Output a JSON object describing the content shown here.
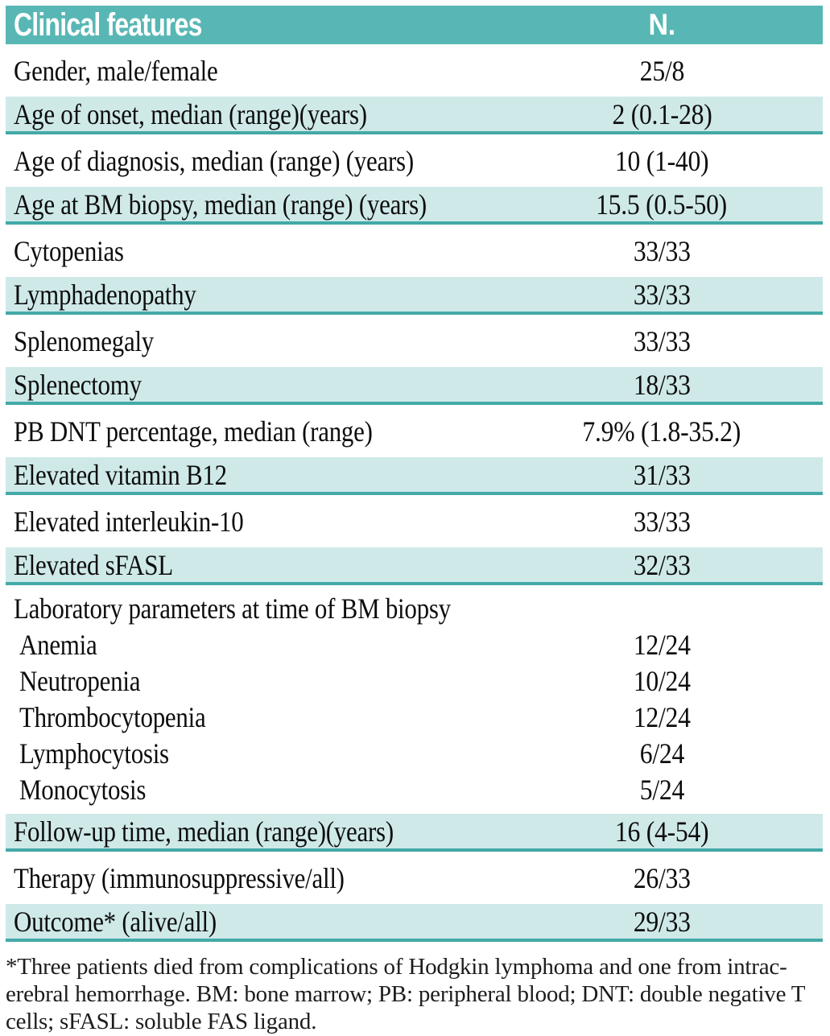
{
  "colors": {
    "header_teal": "#58b7b4",
    "row_teal": "#cfe9e9",
    "rule_teal": "#43a9a7"
  },
  "table": {
    "header": {
      "feature": "Clinical features",
      "value": "N."
    },
    "rows": [
      {
        "label": "Gender, male/female",
        "value": "25/8"
      },
      {
        "label": "Age of onset, median (range)(years)",
        "value": "2 (0.1-28)"
      },
      {
        "label": "Age of diagnosis, median (range) (years)",
        "value": "10 (1-40)"
      },
      {
        "label": "Age at BM biopsy, median (range) (years)",
        "value": "15.5 (0.5-50)"
      },
      {
        "label": "Cytopenias",
        "value": "33/33"
      },
      {
        "label": "Lymphadenopathy",
        "value": "33/33"
      },
      {
        "label": "Splenomegaly",
        "value": "33/33"
      },
      {
        "label": "Splenectomy",
        "value": "18/33"
      },
      {
        "label": "PB DNT percentage, median (range)",
        "value": "7.9% (1.8-35.2)"
      },
      {
        "label": "Elevated vitamin B12",
        "value": "31/33"
      },
      {
        "label": "Elevated interleukin-10",
        "value": "33/33"
      },
      {
        "label": "Elevated sFASL",
        "value": "32/33"
      },
      {
        "title": "Laboratory parameters at time of BM biopsy",
        "items": [
          {
            "label": "Anemia",
            "value": "12/24"
          },
          {
            "label": "Neutropenia",
            "value": "10/24"
          },
          {
            "label": "Thrombocytopenia",
            "value": "12/24"
          },
          {
            "label": "Lymphocytosis",
            "value": "6/24"
          },
          {
            "label": "Monocytosis",
            "value": "5/24"
          }
        ]
      },
      {
        "label": "Follow-up time, median (range)(years)",
        "value": "16 (4-54)"
      },
      {
        "label": "Therapy (immunosuppressive/all)",
        "value": "26/33"
      },
      {
        "label": "Outcome* (alive/all)",
        "value": "29/33"
      }
    ],
    "footnote_lines": [
      "*Three patients died from complications of Hodgkin lymphoma and one from intrac-",
      "erebral hemorrhage. BM: bone marrow; PB: peripheral blood; DNT: double negative T",
      "cells; sFASL: soluble FAS ligand."
    ]
  }
}
